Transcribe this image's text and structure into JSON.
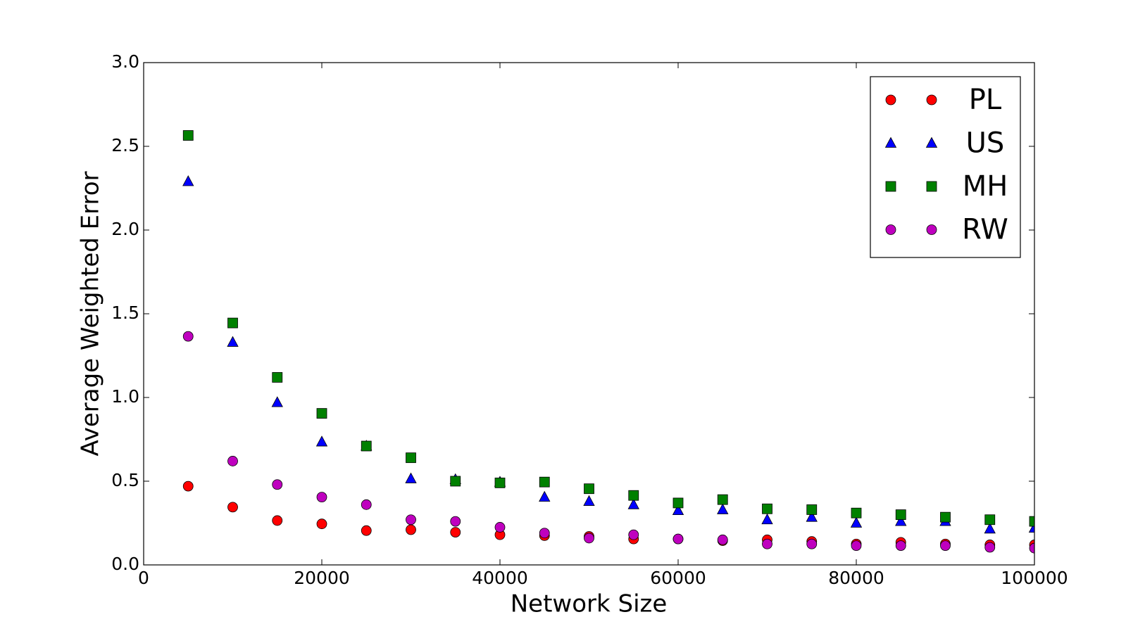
{
  "chart_data": {
    "type": "scatter",
    "xlabel": "Network Size",
    "ylabel": "Average Weighted Error",
    "x": [
      5000,
      10000,
      15000,
      20000,
      25000,
      30000,
      35000,
      40000,
      45000,
      50000,
      55000,
      60000,
      65000,
      70000,
      75000,
      80000,
      85000,
      90000,
      95000,
      100000
    ],
    "series": [
      {
        "name": "PL",
        "color": "#ff0000",
        "marker": "o",
        "values": [
          0.47,
          0.345,
          0.265,
          0.245,
          0.205,
          0.21,
          0.195,
          0.18,
          0.175,
          0.17,
          0.155,
          0.155,
          0.145,
          0.15,
          0.14,
          0.125,
          0.135,
          0.125,
          0.12,
          0.12
        ]
      },
      {
        "name": "US",
        "color": "#0000ff",
        "marker": "^",
        "values": [
          2.29,
          1.33,
          0.97,
          0.735,
          0.71,
          0.515,
          0.51,
          0.495,
          0.405,
          0.38,
          0.36,
          0.325,
          0.33,
          0.27,
          0.285,
          0.25,
          0.26,
          0.26,
          0.215,
          0.22
        ]
      },
      {
        "name": "MH",
        "color": "#008000",
        "marker": "s",
        "values": [
          2.565,
          1.445,
          1.12,
          0.905,
          0.71,
          0.64,
          0.5,
          0.49,
          0.495,
          0.455,
          0.415,
          0.37,
          0.39,
          0.335,
          0.33,
          0.31,
          0.3,
          0.285,
          0.27,
          0.26
        ]
      },
      {
        "name": "RW",
        "color": "#bf00bf",
        "marker": "o",
        "values": [
          1.365,
          0.62,
          0.48,
          0.405,
          0.36,
          0.27,
          0.26,
          0.225,
          0.19,
          0.16,
          0.18,
          0.155,
          0.15,
          0.125,
          0.125,
          0.115,
          0.115,
          0.115,
          0.105,
          0.1
        ]
      }
    ],
    "xlim": [
      0,
      100000
    ],
    "xticks": [
      0,
      20000,
      40000,
      60000,
      80000,
      100000
    ],
    "ylim": [
      0,
      3.0
    ],
    "yticks": [
      {
        "value": 0,
        "label": "0.0"
      },
      0.5,
      {
        "value": 1,
        "label": "1.0"
      },
      1.5,
      {
        "value": 2,
        "label": "2.0"
      },
      2.5,
      {
        "value": 3,
        "label": "3.0"
      }
    ],
    "legend": "upper right",
    "grid": false
  }
}
